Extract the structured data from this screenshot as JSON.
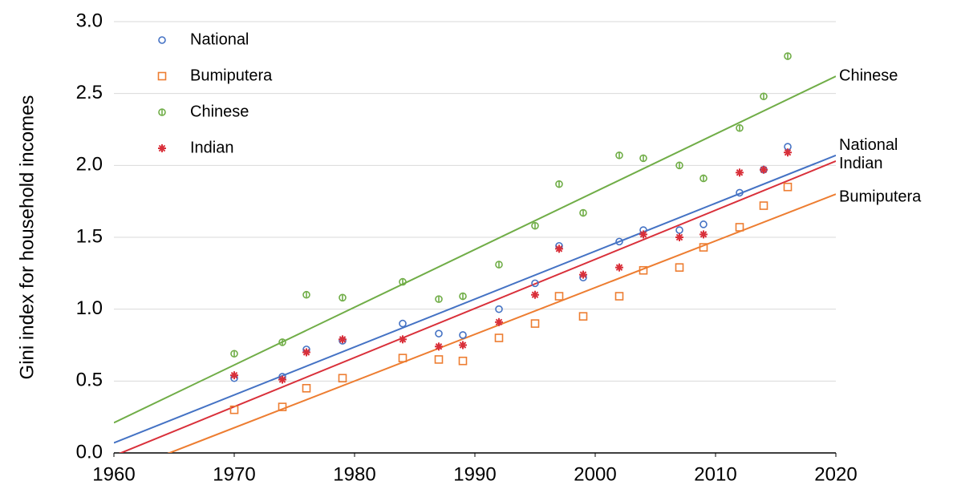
{
  "chart_data": {
    "type": "scatter",
    "y_label": "Gini index for household incomes",
    "x": [
      1970,
      1974,
      1976,
      1979,
      1984,
      1987,
      1989,
      1992,
      1995,
      1997,
      1999,
      2002,
      2004,
      2007,
      2009,
      2012,
      2014,
      2016
    ],
    "series": [
      {
        "name": "National",
        "color": "#4472c4",
        "marker": "circle",
        "values": [
          0.52,
          0.53,
          0.72,
          0.78,
          0.9,
          0.83,
          0.82,
          1.0,
          1.18,
          1.44,
          1.22,
          1.47,
          1.55,
          1.55,
          1.59,
          1.81,
          1.97,
          2.13
        ],
        "trend": {
          "x": [
            1960,
            2020
          ],
          "y": [
            0.07,
            2.07
          ]
        }
      },
      {
        "name": "Bumiputera",
        "color": "#ed7d31",
        "marker": "square",
        "values": [
          0.3,
          0.32,
          0.45,
          0.52,
          0.66,
          0.65,
          0.64,
          0.8,
          0.9,
          1.09,
          0.95,
          1.09,
          1.27,
          1.29,
          1.43,
          1.57,
          1.72,
          1.85
        ],
        "trend": {
          "x": [
            1960,
            2020
          ],
          "y": [
            -0.15,
            1.8
          ]
        }
      },
      {
        "name": "Chinese",
        "color": "#70ad47",
        "marker": "circle-bar",
        "values": [
          0.69,
          0.77,
          1.1,
          1.08,
          1.19,
          1.07,
          1.09,
          1.31,
          1.58,
          1.87,
          1.67,
          2.07,
          2.05,
          2.0,
          1.91,
          2.26,
          2.48,
          2.76
        ],
        "trend": {
          "x": [
            1960,
            2020
          ],
          "y": [
            0.21,
            2.62
          ]
        }
      },
      {
        "name": "Indian",
        "color": "#d9303a",
        "marker": "star",
        "values": [
          0.54,
          0.51,
          0.7,
          0.79,
          0.79,
          0.74,
          0.75,
          0.91,
          1.1,
          1.42,
          1.24,
          1.29,
          1.52,
          1.5,
          1.52,
          1.95,
          1.97,
          2.09
        ],
        "trend": {
          "x": [
            1960,
            2020
          ],
          "y": [
            -0.02,
            2.03
          ]
        }
      }
    ],
    "xlim": [
      1960,
      2020
    ],
    "xticks": [
      1960,
      1970,
      1980,
      1990,
      2000,
      2010,
      2020
    ],
    "ylim": [
      0,
      3
    ],
    "yticks": [
      {
        "value": 0,
        "label": "0.0"
      },
      0.5,
      {
        "value": 1,
        "label": "1.0"
      },
      1.5,
      {
        "value": 2,
        "label": "2.0"
      },
      2.5,
      {
        "value": 3,
        "label": "3.0"
      }
    ],
    "grid": true,
    "legend": "top-left"
  }
}
